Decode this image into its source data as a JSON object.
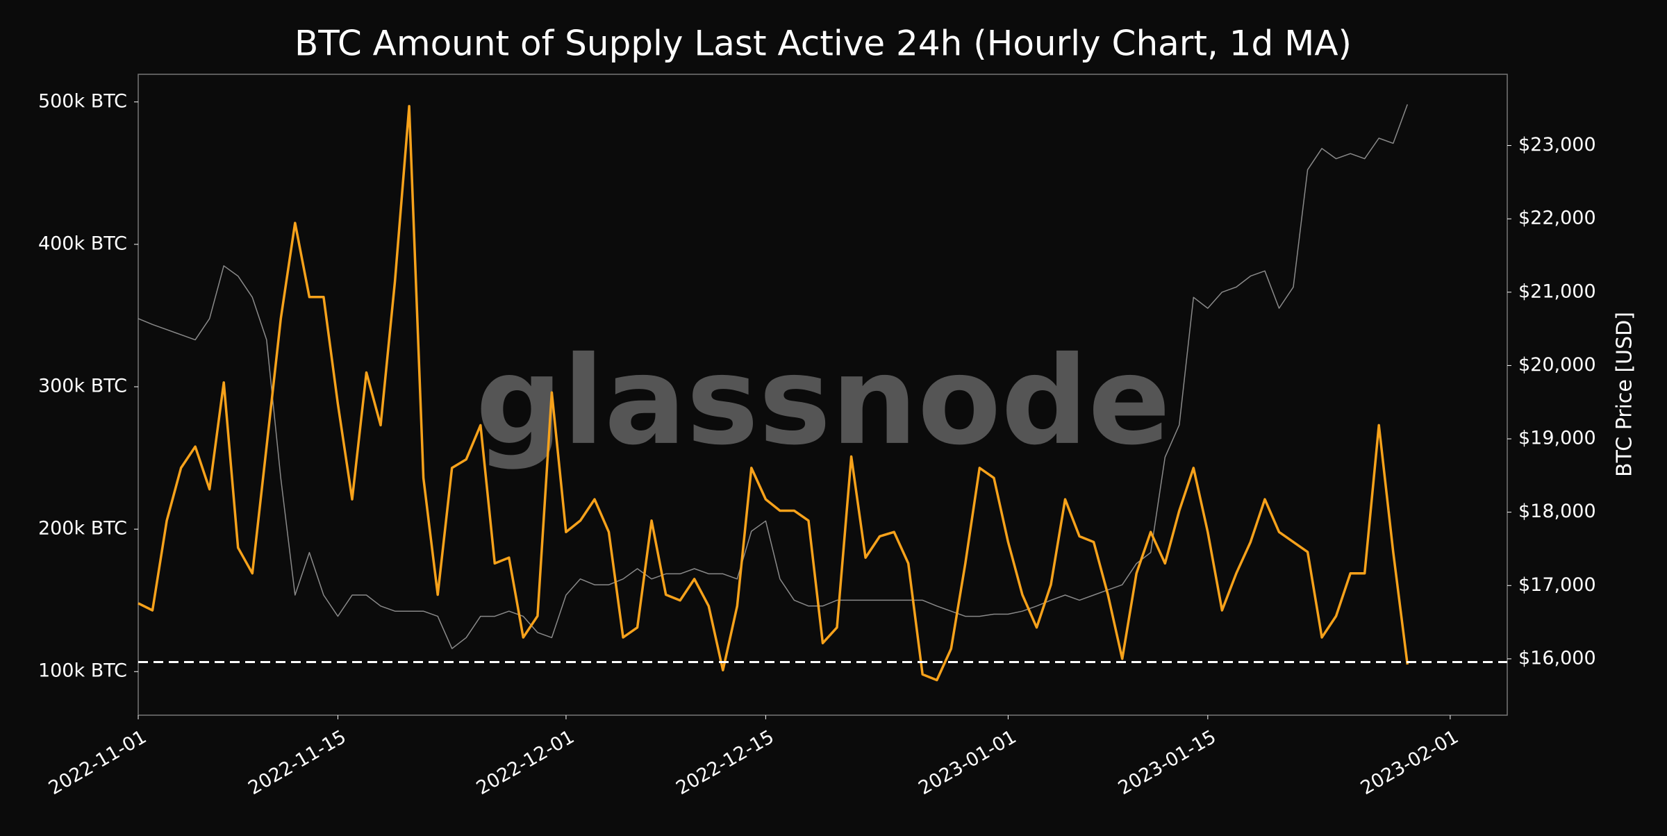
{
  "chart_data": {
    "type": "line",
    "title": "BTC Amount of Supply Last Active 24h (Hourly Chart, 1d MA)",
    "y2_label": "BTC Price [USD]",
    "watermark": "glassnode",
    "x": [
      "2022-11-01",
      "2022-11-02",
      "2022-11-03",
      "2022-11-04",
      "2022-11-05",
      "2022-11-06",
      "2022-11-07",
      "2022-11-08",
      "2022-11-09",
      "2022-11-10",
      "2022-11-11",
      "2022-11-12",
      "2022-11-13",
      "2022-11-14",
      "2022-11-15",
      "2022-11-16",
      "2022-11-17",
      "2022-11-18",
      "2022-11-19",
      "2022-11-20",
      "2022-11-21",
      "2022-11-22",
      "2022-11-23",
      "2022-11-24",
      "2022-11-25",
      "2022-11-26",
      "2022-11-27",
      "2022-11-28",
      "2022-11-29",
      "2022-11-30",
      "2022-12-01",
      "2022-12-02",
      "2022-12-03",
      "2022-12-04",
      "2022-12-05",
      "2022-12-06",
      "2022-12-07",
      "2022-12-08",
      "2022-12-09",
      "2022-12-10",
      "2022-12-11",
      "2022-12-12",
      "2022-12-13",
      "2022-12-14",
      "2022-12-15",
      "2022-12-16",
      "2022-12-17",
      "2022-12-18",
      "2022-12-19",
      "2022-12-20",
      "2022-12-21",
      "2022-12-22",
      "2022-12-23",
      "2022-12-24",
      "2022-12-25",
      "2022-12-26",
      "2022-12-27",
      "2022-12-28",
      "2022-12-29",
      "2022-12-30",
      "2022-12-31",
      "2023-01-01",
      "2023-01-02",
      "2023-01-03",
      "2023-01-04",
      "2023-01-05",
      "2023-01-06",
      "2023-01-07",
      "2023-01-08",
      "2023-01-09",
      "2023-01-10",
      "2023-01-11",
      "2023-01-12",
      "2023-01-13",
      "2023-01-14",
      "2023-01-15",
      "2023-01-16",
      "2023-01-17",
      "2023-01-18",
      "2023-01-19",
      "2023-01-20",
      "2023-01-21",
      "2023-01-22",
      "2023-01-23",
      "2023-01-24",
      "2023-01-25",
      "2023-01-26",
      "2023-01-27",
      "2023-01-28",
      "2023-01-29"
    ],
    "series": [
      {
        "name": "Supply Last Active 24h",
        "color": "#f7a21b",
        "axis": "y",
        "values": [
          148000,
          143000,
          206000,
          243000,
          258000,
          228000,
          303000,
          187000,
          169000,
          258000,
          348000,
          415000,
          363000,
          363000,
          288000,
          221000,
          310000,
          273000,
          374000,
          497000,
          236000,
          154000,
          243000,
          249000,
          273000,
          176000,
          180000,
          124000,
          139000,
          296000,
          198000,
          206000,
          221000,
          198000,
          124000,
          131000,
          206000,
          154000,
          150000,
          165000,
          146000,
          101000,
          146000,
          243000,
          221000,
          213000,
          213000,
          206000,
          120000,
          131000,
          251000,
          180000,
          195000,
          198000,
          176000,
          98000,
          94000,
          116000,
          176000,
          243000,
          236000,
          191000,
          154000,
          131000,
          161000,
          221000,
          195000,
          191000,
          154000,
          109000,
          169000,
          198000,
          176000,
          213000,
          243000,
          198000,
          143000,
          169000,
          191000,
          221000,
          198000,
          191000,
          184000,
          124000,
          139000,
          169000,
          169000,
          273000,
          184000,
          105000
        ]
      },
      {
        "name": "BTC Price",
        "color": "#8a8a8a",
        "axis": "y2",
        "values": [
          20640,
          20560,
          20490,
          20420,
          20350,
          20640,
          21360,
          21220,
          20930,
          20350,
          18460,
          16870,
          17450,
          16870,
          16580,
          16870,
          16870,
          16720,
          16650,
          16650,
          16650,
          16580,
          16140,
          16290,
          16580,
          16580,
          16650,
          16580,
          16360,
          16290,
          16870,
          17090,
          17010,
          17010,
          17090,
          17230,
          17090,
          17160,
          17160,
          17230,
          17160,
          17160,
          17090,
          17740,
          17880,
          17090,
          16800,
          16720,
          16720,
          16800,
          16800,
          16800,
          16800,
          16800,
          16800,
          16800,
          16720,
          16650,
          16580,
          16580,
          16610,
          16610,
          16650,
          16720,
          16800,
          16870,
          16800,
          16870,
          16940,
          17010,
          17300,
          17450,
          18750,
          19190,
          20930,
          20780,
          21000,
          21070,
          21220,
          21290,
          20780,
          21070,
          22670,
          22960,
          22820,
          22890,
          22820,
          23100,
          23030,
          23560
        ]
      }
    ],
    "reference_line": 106700,
    "xlim": [
      "2022-11-01",
      "2023-02-05"
    ],
    "xticks": [
      "2022-11-01",
      "2022-11-15",
      "2022-12-01",
      "2022-12-15",
      "2023-01-01",
      "2023-01-15",
      "2023-02-01"
    ],
    "ylim": [
      69400,
      519400
    ],
    "yticks": [
      {
        "value": 100000,
        "label": "100k BTC"
      },
      {
        "value": 200000,
        "label": "200k BTC"
      },
      {
        "value": 300000,
        "label": "300k BTC"
      },
      {
        "value": 400000,
        "label": "400k BTC"
      },
      {
        "value": 500000,
        "label": "500k BTC"
      }
    ],
    "y2lim": [
      15232,
      23971
    ],
    "y2ticks": [
      {
        "value": 16000,
        "label": "$16,000"
      },
      {
        "value": 17000,
        "label": "$17,000"
      },
      {
        "value": 18000,
        "label": "$18,000"
      },
      {
        "value": 19000,
        "label": "$19,000"
      },
      {
        "value": 20000,
        "label": "$20,000"
      },
      {
        "value": 21000,
        "label": "$21,000"
      },
      {
        "value": 22000,
        "label": "$22,000"
      },
      {
        "value": 23000,
        "label": "$23,000"
      }
    ]
  }
}
